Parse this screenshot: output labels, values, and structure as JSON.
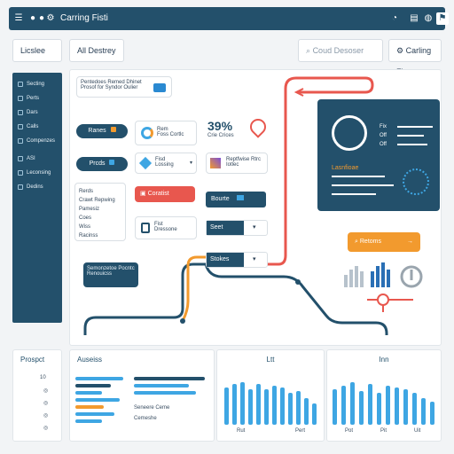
{
  "topbar": {
    "title": "Carring Fisti"
  },
  "tabs": {
    "left": "Licslee",
    "mid": "All Destrey"
  },
  "search": {
    "placeholder": "Coud Desoser"
  },
  "dropdown": {
    "label": "Carling Fist"
  },
  "sidebar": {
    "items": [
      {
        "label": "Secting"
      },
      {
        "label": "Perts"
      },
      {
        "label": "Dars"
      },
      {
        "label": "Calls"
      },
      {
        "label": "Compenzes"
      },
      {
        "label": "ASI"
      },
      {
        "label": "Leconsing"
      },
      {
        "label": "Dedins"
      }
    ]
  },
  "top_card": {
    "line1": "Pentedoes Remed Dhinet",
    "line2": "Prosof for Syndor Oulier"
  },
  "pill_btns": {
    "b1": "Ranes",
    "b2": "Prcds"
  },
  "mini_cards": {
    "c1a": "Rem",
    "c1b": "Foss Cortlc",
    "c2a": "Fisd",
    "c2b": "Lossing",
    "c3a": "Reptfwise Rtrc",
    "c3b": "Iotlec"
  },
  "metric": {
    "value": "39%",
    "sub": "Crie Crices"
  },
  "list_card": {
    "items": [
      "Rerds",
      "Crawt Repwing",
      "Pamesiz",
      "Coes",
      "Wiss",
      "Racinss"
    ]
  },
  "red_btn": {
    "label": "Coratist"
  },
  "small_card": {
    "a": "Fist",
    "b": "Dressone"
  },
  "dark_buttons": {
    "d1": "Bourte",
    "d2": "Seet",
    "d3": "Stokes"
  },
  "tooltip": {
    "line1": "Semonzetoe Pocntc",
    "line2": "Renouicss"
  },
  "hero": {
    "lbl1": "Fix",
    "lbl2": "Off",
    "lbl3": "Off",
    "title": "Lasnfioae"
  },
  "orange_btn": {
    "label": "Retoms"
  },
  "bottom": {
    "panel1_title": "Prospct",
    "panel1_value": "10",
    "panel2_title": "Auseiss",
    "panel2_note1": "Seneere Ceme",
    "panel2_note2": "Cemeshe",
    "panel3_title": "Ltt",
    "panel4_title": "Inn",
    "axis1": [
      "Rut",
      "Pert"
    ],
    "axis2": [
      "Pot",
      "Pit",
      "Uit"
    ]
  },
  "chart_data": [
    {
      "type": "bar",
      "title": "Ltt",
      "values": [
        42,
        46,
        48,
        40,
        46,
        40,
        44,
        42,
        36,
        38,
        30,
        24
      ]
    },
    {
      "type": "bar",
      "title": "Inn",
      "values": [
        40,
        44,
        48,
        38,
        46,
        36,
        44,
        42,
        40,
        36,
        30,
        26
      ]
    }
  ]
}
